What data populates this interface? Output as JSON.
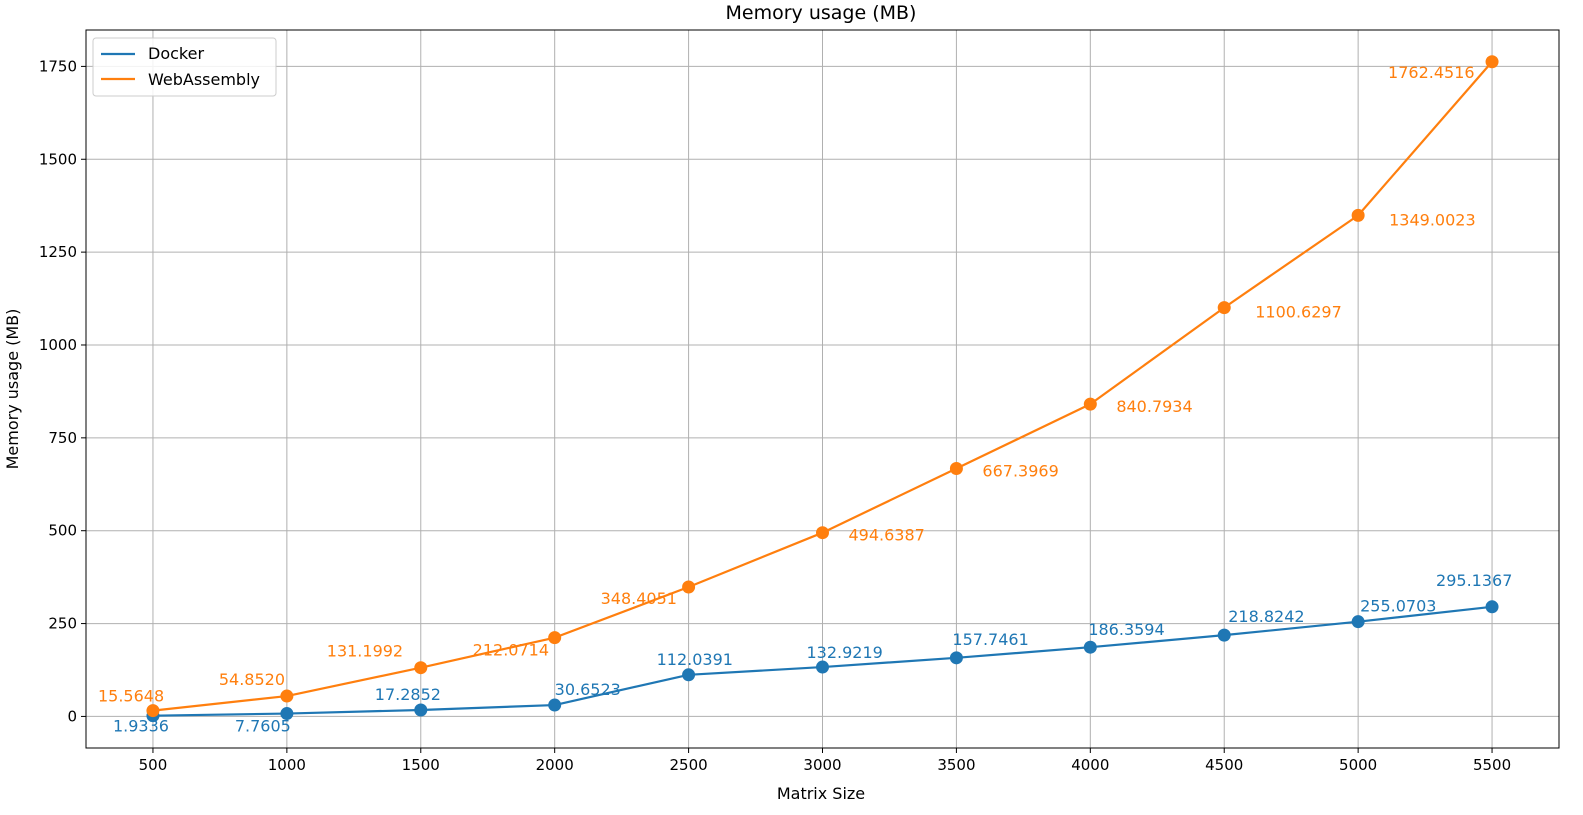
{
  "chart_data": {
    "type": "line",
    "title": "Memory usage (MB)",
    "xlabel": "Matrix Size",
    "ylabel": "Memory usage (MB)",
    "x": [
      500,
      1000,
      1500,
      2000,
      2500,
      3000,
      3500,
      4000,
      4500,
      5000,
      5500
    ],
    "xlim": [
      250,
      5750
    ],
    "ylim": [
      -85,
      1848
    ],
    "xticks": [
      500,
      1000,
      1500,
      2000,
      2500,
      3000,
      3500,
      4000,
      4500,
      5000,
      5500
    ],
    "xtick_labels": [
      "500",
      "1000",
      "1500",
      "2000",
      "2500",
      "3000",
      "3500",
      "4000",
      "4500",
      "5000",
      "5500"
    ],
    "yticks": [
      0,
      250,
      500,
      750,
      1000,
      1250,
      1500,
      1750
    ],
    "ytick_labels": [
      "0",
      "250",
      "500",
      "750",
      "1000",
      "1250",
      "1500",
      "1750"
    ],
    "grid": true,
    "legend_position": "top-left",
    "series": [
      {
        "name": "Docker",
        "color": "#1f77b4",
        "values": [
          1.9336,
          7.7605,
          17.2852,
          30.6523,
          112.0391,
          132.9219,
          157.7461,
          186.3594,
          218.8242,
          255.0703,
          295.1367
        ],
        "labels": [
          "1.9336",
          "7.7605",
          "17.2852",
          "30.6523",
          "112.0391",
          "132.9219",
          "157.7461",
          "186.3594",
          "218.8242",
          "255.0703",
          "295.1367"
        ]
      },
      {
        "name": "WebAssembly",
        "color": "#ff7f0e",
        "values": [
          15.5648,
          54.852,
          131.1992,
          212.0714,
          348.4051,
          494.6387,
          667.3969,
          840.7934,
          1100.6297,
          1349.0023,
          1762.4516
        ],
        "labels": [
          "15.5648",
          "54.8520",
          "131.1992",
          "212.0714",
          "348.4051",
          "494.6387",
          "667.3969",
          "840.7934",
          "1100.6297",
          "1349.0023",
          "1762.4516"
        ]
      }
    ]
  }
}
